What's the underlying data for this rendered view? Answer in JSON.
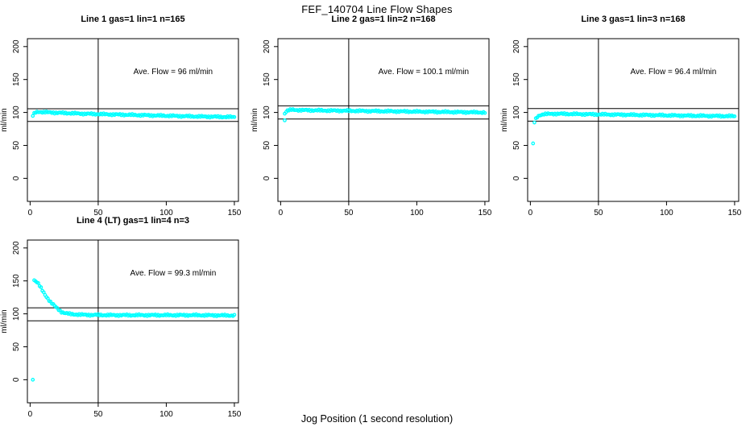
{
  "title": "FEF_140704  Line Flow Shapes",
  "xlabel": "Jog Position (1 second resolution)",
  "point_color": "#00FFFF",
  "line_color": "#000000",
  "chart_data": [
    {
      "type": "scatter",
      "title": "Line 1 gas=1 lin=1 n=165",
      "n": 165,
      "annotation": "Ave. Flow =  96  ml/min",
      "ave_flow": 96,
      "ylabel": "ml/min",
      "xlim": [
        -2,
        153
      ],
      "ylim": [
        -35,
        212
      ],
      "xticks": [
        0,
        50,
        100,
        150
      ],
      "yticks": [
        0,
        50,
        100,
        150,
        200
      ],
      "vline_x": 50,
      "hlines": [
        105.6,
        86.4
      ],
      "marker": "open-circle",
      "trend": [
        [
          2,
          95
        ],
        [
          3,
          98
        ],
        [
          4,
          100
        ],
        [
          6,
          101
        ],
        [
          10,
          100.5
        ],
        [
          20,
          99.5
        ],
        [
          40,
          98
        ],
        [
          60,
          97
        ],
        [
          80,
          96
        ],
        [
          100,
          95
        ],
        [
          120,
          94
        ],
        [
          150,
          93
        ]
      ],
      "outliers": []
    },
    {
      "type": "scatter",
      "title": "Line 2 gas=1 lin=2 n=168",
      "n": 168,
      "annotation": "Ave. Flow =  100.1  ml/min",
      "ave_flow": 100.1,
      "ylabel": "ml/min",
      "xlim": [
        -2,
        153
      ],
      "ylim": [
        -35,
        212
      ],
      "xticks": [
        0,
        50,
        100,
        150
      ],
      "yticks": [
        0,
        50,
        100,
        150,
        200
      ],
      "vline_x": 50,
      "hlines": [
        110.1,
        90.1
      ],
      "marker": "open-circle",
      "trend": [
        [
          3,
          99
        ],
        [
          5,
          103
        ],
        [
          8,
          104
        ],
        [
          15,
          103.5
        ],
        [
          30,
          103
        ],
        [
          50,
          102.5
        ],
        [
          70,
          102
        ],
        [
          90,
          101.5
        ],
        [
          110,
          101
        ],
        [
          130,
          100.5
        ],
        [
          150,
          100
        ]
      ],
      "outliers": [
        [
          3,
          88
        ]
      ]
    },
    {
      "type": "scatter",
      "title": "Line 3 gas=1 lin=3 n=168",
      "n": 168,
      "annotation": "Ave. Flow =  96.4  ml/min",
      "ave_flow": 96.4,
      "ylabel": "ml/min",
      "xlim": [
        -2,
        153
      ],
      "ylim": [
        -35,
        212
      ],
      "xticks": [
        0,
        50,
        100,
        150
      ],
      "yticks": [
        0,
        50,
        100,
        150,
        200
      ],
      "vline_x": 50,
      "hlines": [
        106.0,
        86.8
      ],
      "marker": "open-circle",
      "trend": [
        [
          3,
          85
        ],
        [
          4,
          90
        ],
        [
          5,
          93
        ],
        [
          7,
          96
        ],
        [
          10,
          97.5
        ],
        [
          20,
          98
        ],
        [
          40,
          97.3
        ],
        [
          60,
          96.8
        ],
        [
          80,
          96.2
        ],
        [
          100,
          95.6
        ],
        [
          120,
          95
        ],
        [
          150,
          94.3
        ]
      ],
      "outliers": [
        [
          2,
          53
        ]
      ]
    },
    {
      "type": "scatter",
      "title": "Line 4 (LT) gas=1 lin=4 n=3",
      "n": 3,
      "annotation": "Ave. Flow =  99.3  ml/min",
      "ave_flow": 99.3,
      "ylabel": "ml/min",
      "xlim": [
        -2,
        153
      ],
      "ylim": [
        -35,
        212
      ],
      "xticks": [
        0,
        50,
        100,
        150
      ],
      "yticks": [
        0,
        50,
        100,
        150,
        200
      ],
      "vline_x": 50,
      "hlines": [
        109.2,
        89.4
      ],
      "marker": "open-circle",
      "trend": [
        [
          3,
          151
        ],
        [
          4,
          150
        ],
        [
          5,
          148
        ],
        [
          6,
          146
        ],
        [
          8,
          139
        ],
        [
          10,
          132
        ],
        [
          12,
          126
        ],
        [
          15,
          118
        ],
        [
          18,
          112
        ],
        [
          20,
          108
        ],
        [
          23,
          103
        ],
        [
          26,
          101
        ],
        [
          30,
          99.5
        ],
        [
          40,
          98.5
        ],
        [
          60,
          98
        ],
        [
          90,
          98
        ],
        [
          120,
          98
        ],
        [
          150,
          97.5
        ]
      ],
      "outliers": [
        [
          2,
          0
        ]
      ]
    }
  ]
}
